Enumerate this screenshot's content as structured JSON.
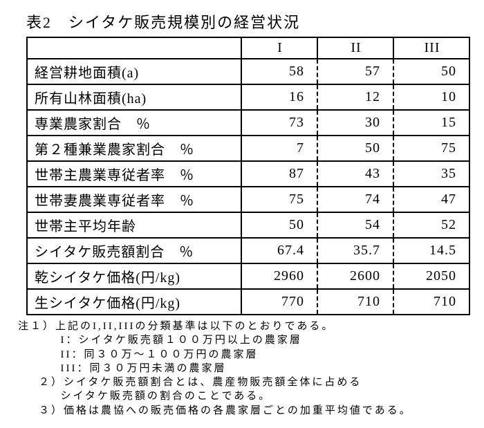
{
  "title": "表2　シイタケ販売規模別の経営状況",
  "table": {
    "header_blank": "",
    "columns": [
      "I",
      "II",
      "III"
    ],
    "rows": [
      {
        "label": "経営耕地面積(a)",
        "v": [
          "58",
          "57",
          "50"
        ]
      },
      {
        "label": "所有山林面積(ha)",
        "v": [
          "16",
          "12",
          "10"
        ]
      },
      {
        "label": "専業農家割合　％",
        "v": [
          "73",
          "30",
          "15"
        ]
      },
      {
        "label": "第２種兼業農家割合　％",
        "v": [
          "7",
          "50",
          "75"
        ]
      },
      {
        "label": "世帯主農業専従者率　％",
        "v": [
          "87",
          "43",
          "35"
        ]
      },
      {
        "label": "世帯妻農業専従者率　％",
        "v": [
          "75",
          "74",
          "47"
        ]
      },
      {
        "label": "世帯主平均年齢",
        "v": [
          "50",
          "54",
          "52"
        ]
      },
      {
        "label": "シイタケ販売額割合　％",
        "v": [
          "67.4",
          "35.7",
          "14.5"
        ]
      },
      {
        "label": "乾シイタケ価格(円/kg)",
        "v": [
          "2960",
          "2600",
          "2050"
        ]
      },
      {
        "label": "生シイタケ価格(円/kg)",
        "v": [
          "770",
          "710",
          "710"
        ]
      }
    ]
  },
  "notes": {
    "n1a": "注１）上記のI,II,IIIの分類基準は以下のとおりである。",
    "n1b": "I：シイタケ販売額１００万円以上の農家層",
    "n1c": "II：同３０万～１００万円の農家層",
    "n1d": "III：同３０万円未満の農家層",
    "n2a": "２）シイタケ販売額割合とは、農産物販売額全体に占める",
    "n2b": "シイタケ販売額の割合のことである。",
    "n3": "３）価格は農協への販売価格の各農家層ごとの加重平均値である。"
  }
}
